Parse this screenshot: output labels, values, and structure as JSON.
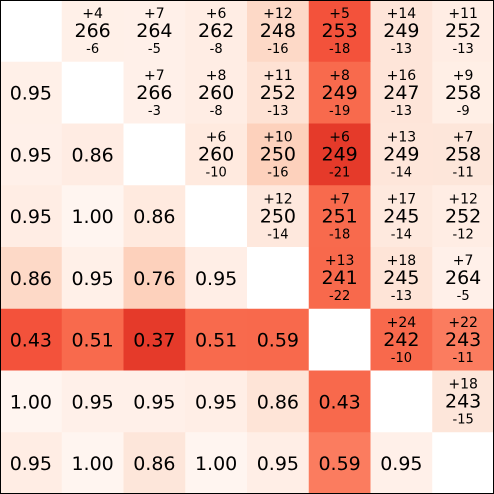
{
  "chart_data": {
    "type": "heatmap",
    "title": "",
    "xlabel": "",
    "ylabel": "",
    "size": 8,
    "color_scale": {
      "low": "#fff5f0",
      "high": "#d7261e"
    },
    "lower_triangle": [
      [
        "",
        "",
        "",
        "",
        "",
        "",
        "",
        ""
      ],
      [
        "0.95",
        "",
        "",
        "",
        "",
        "",
        "",
        ""
      ],
      [
        "0.95",
        "0.86",
        "",
        "",
        "",
        "",
        "",
        ""
      ],
      [
        "0.95",
        "1.00",
        "0.86",
        "",
        "",
        "",
        "",
        ""
      ],
      [
        "0.86",
        "0.95",
        "0.76",
        "0.95",
        "",
        "",
        "",
        ""
      ],
      [
        "0.43",
        "0.51",
        "0.37",
        "0.51",
        "0.59",
        "",
        "",
        ""
      ],
      [
        "1.00",
        "0.95",
        "0.95",
        "0.95",
        "0.86",
        "0.43",
        "",
        ""
      ],
      [
        "0.95",
        "1.00",
        "0.86",
        "1.00",
        "0.95",
        "0.59",
        "0.95",
        ""
      ]
    ],
    "upper_triangle": [
      {
        "row": 0,
        "col": 1,
        "top": "+4",
        "main": "266",
        "bottom": "-6"
      },
      {
        "row": 0,
        "col": 2,
        "top": "+7",
        "main": "264",
        "bottom": "-5"
      },
      {
        "row": 0,
        "col": 3,
        "top": "+6",
        "main": "262",
        "bottom": "-8"
      },
      {
        "row": 0,
        "col": 4,
        "top": "+12",
        "main": "248",
        "bottom": "-16"
      },
      {
        "row": 0,
        "col": 5,
        "top": "+5",
        "main": "253",
        "bottom": "-18"
      },
      {
        "row": 0,
        "col": 6,
        "top": "+14",
        "main": "249",
        "bottom": "-13"
      },
      {
        "row": 0,
        "col": 7,
        "top": "+11",
        "main": "252",
        "bottom": "-13"
      },
      {
        "row": 1,
        "col": 2,
        "top": "+7",
        "main": "266",
        "bottom": "-3"
      },
      {
        "row": 1,
        "col": 3,
        "top": "+8",
        "main": "260",
        "bottom": "-8"
      },
      {
        "row": 1,
        "col": 4,
        "top": "+11",
        "main": "252",
        "bottom": "-13"
      },
      {
        "row": 1,
        "col": 5,
        "top": "+8",
        "main": "249",
        "bottom": "-19"
      },
      {
        "row": 1,
        "col": 6,
        "top": "+16",
        "main": "247",
        "bottom": "-13"
      },
      {
        "row": 1,
        "col": 7,
        "top": "+9",
        "main": "258",
        "bottom": "-9"
      },
      {
        "row": 2,
        "col": 3,
        "top": "+6",
        "main": "260",
        "bottom": "-10"
      },
      {
        "row": 2,
        "col": 4,
        "top": "+10",
        "main": "250",
        "bottom": "-16"
      },
      {
        "row": 2,
        "col": 5,
        "top": "+6",
        "main": "249",
        "bottom": "-21"
      },
      {
        "row": 2,
        "col": 6,
        "top": "+13",
        "main": "249",
        "bottom": "-14"
      },
      {
        "row": 2,
        "col": 7,
        "top": "+7",
        "main": "258",
        "bottom": "-11"
      },
      {
        "row": 3,
        "col": 4,
        "top": "+12",
        "main": "250",
        "bottom": "-14"
      },
      {
        "row": 3,
        "col": 5,
        "top": "+7",
        "main": "251",
        "bottom": "-18"
      },
      {
        "row": 3,
        "col": 6,
        "top": "+17",
        "main": "245",
        "bottom": "-14"
      },
      {
        "row": 3,
        "col": 7,
        "top": "+12",
        "main": "252",
        "bottom": "-12"
      },
      {
        "row": 4,
        "col": 5,
        "top": "+13",
        "main": "241",
        "bottom": "-22"
      },
      {
        "row": 4,
        "col": 6,
        "top": "+18",
        "main": "245",
        "bottom": "-13"
      },
      {
        "row": 4,
        "col": 7,
        "top": "+7",
        "main": "264",
        "bottom": "-5"
      },
      {
        "row": 5,
        "col": 6,
        "top": "+24",
        "main": "242",
        "bottom": "-10"
      },
      {
        "row": 5,
        "col": 7,
        "top": "+22",
        "main": "243",
        "bottom": "-11"
      },
      {
        "row": 6,
        "col": 7,
        "top": "+18",
        "main": "243",
        "bottom": "-15"
      }
    ],
    "cell_colors": [
      [
        "#ffffff",
        "#fff0e8",
        "#fff0e9",
        "#ffede4",
        "#fdd9c7",
        "#f3523b",
        "#fee5d9",
        "#ffede4"
      ],
      [
        "#fff0e8",
        "#ffffff",
        "#fff0e9",
        "#ffede4",
        "#fee2d4",
        "#f86a4d",
        "#fee5d9",
        "#ffefe6"
      ],
      [
        "#fff0e9",
        "#ffece3",
        "#ffffff",
        "#ffeadf",
        "#fdd1bc",
        "#e53a2a",
        "#fee6da",
        "#fde6da"
      ],
      [
        "#ffede4",
        "#fff5f0",
        "#ffeadf",
        "#ffffff",
        "#fee8dd",
        "#f86a4d",
        "#fee9de",
        "#ffede4"
      ],
      [
        "#fdd9c7",
        "#fff0e8",
        "#fdd1bc",
        "#ffeee6",
        "#ffffff",
        "#f8694c",
        "#fee4d7",
        "#fff0e9"
      ],
      [
        "#f3523b",
        "#f86a4d",
        "#e53a2a",
        "#f86a4d",
        "#f8694c",
        "#ffffff",
        "#f8694c",
        "#fb7c5f"
      ],
      [
        "#fff5f0",
        "#fff0e9",
        "#fff0e9",
        "#ffeee6",
        "#fee4d7",
        "#f8694c",
        "#ffffff",
        "#fde6da"
      ],
      [
        "#ffede4",
        "#fff5f0",
        "#fde6da",
        "#fff5f0",
        "#ffeee6",
        "#fb7c5f",
        "#fff0e9",
        "#ffffff"
      ]
    ]
  }
}
